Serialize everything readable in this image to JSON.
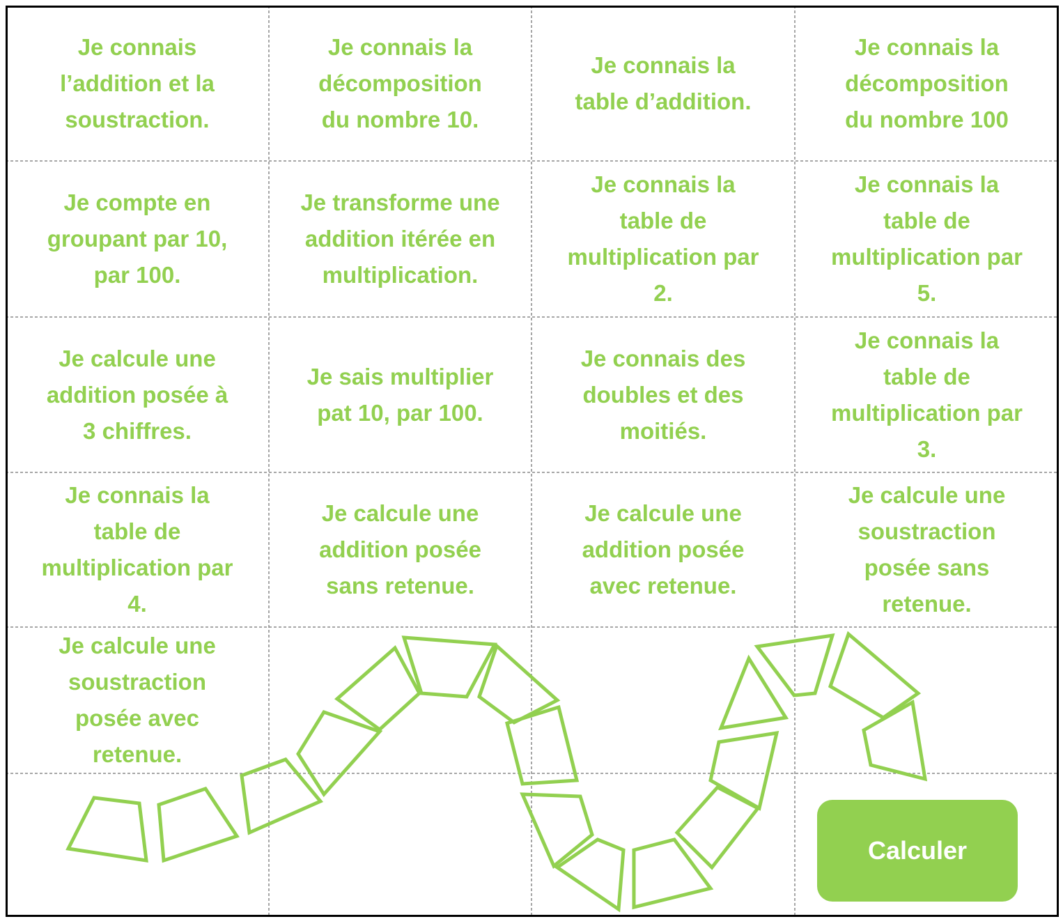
{
  "grid": {
    "cells": [
      [
        "Je connais",
        "l’addition et la",
        "soustraction."
      ],
      [
        "Je connais la",
        "décomposition",
        "du nombre 10."
      ],
      [
        "Je connais la",
        "table d’addition."
      ],
      [
        "Je connais la",
        "décomposition",
        "du nombre 100"
      ],
      [
        "Je compte en",
        "groupant par 10,",
        "par 100."
      ],
      [
        "Je transforme une",
        "addition itérée en",
        "multiplication."
      ],
      [
        "Je connais la",
        "table de",
        "multiplication par",
        "2."
      ],
      [
        "Je connais la",
        "table de",
        "multiplication par",
        "5."
      ],
      [
        "Je calcule une",
        "addition posée à",
        "3 chiffres."
      ],
      [
        "Je sais multiplier",
        "pat 10, par 100."
      ],
      [
        "Je connais des",
        "doubles et des",
        "moitiés."
      ],
      [
        "Je connais la",
        "table de",
        "multiplication par",
        "3."
      ],
      [
        "Je connais la",
        "table de",
        "multiplication par",
        "4."
      ],
      [
        "Je calcule une",
        "addition posée",
        "sans retenue."
      ],
      [
        "Je calcule une",
        "addition posée",
        "avec retenue."
      ],
      [
        "Je calcule une",
        "soustraction",
        "posée sans",
        "retenue."
      ],
      [
        "Je calcule une",
        "soustraction",
        "posée avec",
        "retenue."
      ]
    ]
  },
  "button": {
    "label": "Calculer"
  }
}
